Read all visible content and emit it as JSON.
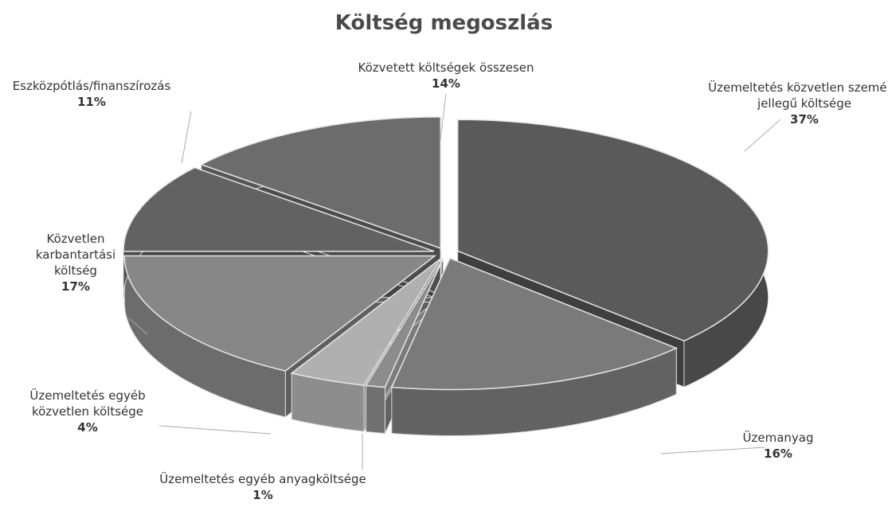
{
  "chart_data": {
    "type": "pie",
    "title": "Költség megoszlás",
    "categories": [
      "Üzemeltetés közvetlen személyi jellegű költsége",
      "Üzemanyag",
      "Üzemeltetés egyéb anyagköltsége",
      "Üzemeltetés egyéb közvetlen költsége",
      "Közvetlen karbantartási költség",
      "Eszközpótlás/finanszírozás",
      "Közvetett költségek összesen"
    ],
    "values": [
      37,
      16,
      1,
      4,
      17,
      11,
      14
    ],
    "value_labels": [
      "37%",
      "16%",
      "1%",
      "4%",
      "17%",
      "11%",
      "14%"
    ],
    "colors": [
      "#5a5a5a",
      "#7a7a7a",
      "#8c8c8c",
      "#b0b0b0",
      "#878787",
      "#626262",
      "#6c6c6c"
    ]
  }
}
